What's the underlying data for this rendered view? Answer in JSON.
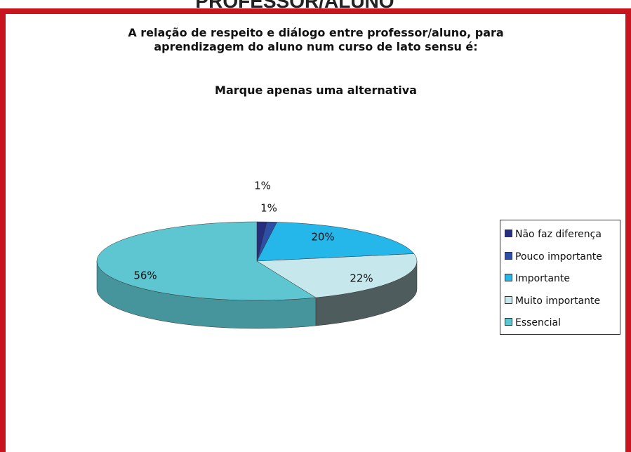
{
  "header": {
    "title": "PROFESSOR/ALUNO"
  },
  "chart_data": {
    "type": "pie",
    "title": "A relação de respeito e diálogo entre professor/aluno, para aprendizagem do aluno num curso de lato sensu é:",
    "subtitle": "Marque apenas uma alternativa",
    "categories": [
      "Não faz diferença",
      "Pouco importante",
      "Importante",
      "Muito importante",
      "Essencial"
    ],
    "values": [
      1,
      1,
      20,
      22,
      56
    ],
    "value_labels": [
      "1%",
      "1%",
      "20%",
      "22%",
      "56%"
    ],
    "colors": [
      "#262f7e",
      "#2e4fa6",
      "#25b6ea",
      "#c6e7ec",
      "#5ec6d0"
    ],
    "legend": "right"
  }
}
